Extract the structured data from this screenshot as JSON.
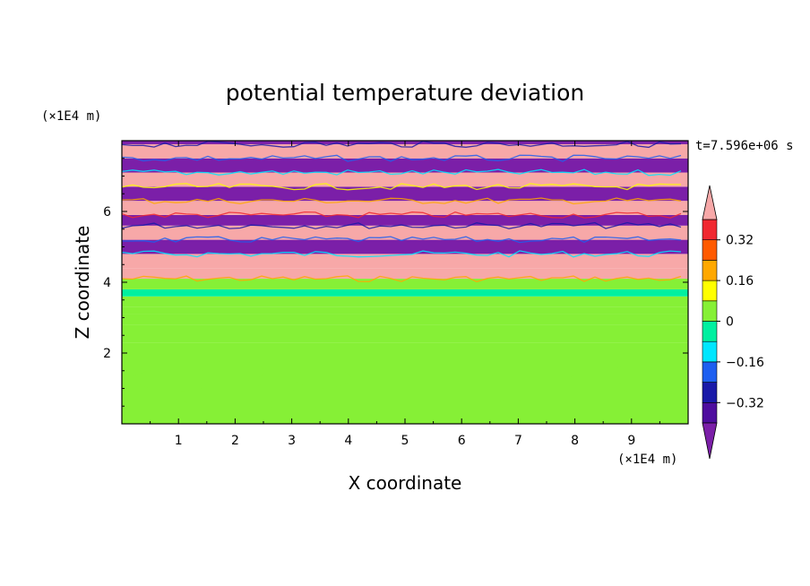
{
  "chart_data": {
    "type": "heatmap",
    "title": "potential temperature deviation",
    "xlabel": "X coordinate",
    "ylabel": "Z coordinate",
    "x_unit": "(×1E4 m)",
    "y_unit": "(×1E4 m)",
    "time_label": "t=7.596e+06 s",
    "xlim": [
      0,
      10
    ],
    "ylim": [
      0,
      8
    ],
    "x_ticks": [
      1,
      2,
      3,
      4,
      5,
      6,
      7,
      8,
      9
    ],
    "y_ticks": [
      2,
      4,
      6
    ],
    "colorbar": {
      "levels": [
        -0.4,
        -0.32,
        -0.24,
        -0.16,
        -0.08,
        0,
        0.08,
        0.16,
        0.24,
        0.32,
        0.4
      ],
      "colors": [
        "#7b1fa8",
        "#4e0d9e",
        "#1a1aa8",
        "#1e5ff0",
        "#00e6ff",
        "#00f0a0",
        "#86f036",
        "#ffff00",
        "#ffa800",
        "#ff5a00",
        "#f02830",
        "#f7a8a8"
      ],
      "labels": [
        "0.32",
        "0.16",
        "0",
        "−0.16",
        "−0.32"
      ],
      "label_values": [
        0.32,
        0.16,
        0,
        -0.16,
        -0.32
      ],
      "extend": "both"
    },
    "bands": [
      {
        "z0": 0.0,
        "z1": 2.0,
        "value": 0.06
      },
      {
        "z0": 2.0,
        "z1": 2.3,
        "value": 0.0
      },
      {
        "z0": 2.3,
        "z1": 2.8,
        "value": 0.05
      },
      {
        "z0": 2.8,
        "z1": 3.1,
        "value": 0.0
      },
      {
        "z0": 3.1,
        "z1": 3.3,
        "value": 0.04
      },
      {
        "z0": 3.3,
        "z1": 3.6,
        "value": 0.0
      },
      {
        "z0": 3.6,
        "z1": 3.8,
        "value": -0.07
      },
      {
        "z0": 3.8,
        "z1": 4.1,
        "value": 0.02
      },
      {
        "z0": 4.1,
        "z1": 4.4,
        "value": 0.45
      },
      {
        "z0": 4.4,
        "z1": 4.8,
        "value": 0.45
      },
      {
        "z0": 4.8,
        "z1": 5.2,
        "value": -0.45
      },
      {
        "z0": 5.2,
        "z1": 5.6,
        "value": 0.45
      },
      {
        "z0": 5.6,
        "z1": 5.9,
        "value": -0.45
      },
      {
        "z0": 5.9,
        "z1": 6.3,
        "value": 0.45
      },
      {
        "z0": 6.3,
        "z1": 6.7,
        "value": -0.45
      },
      {
        "z0": 6.7,
        "z1": 7.1,
        "value": 0.45
      },
      {
        "z0": 7.1,
        "z1": 7.5,
        "value": -0.45
      },
      {
        "z0": 7.5,
        "z1": 7.9,
        "value": 0.45
      },
      {
        "z0": 7.9,
        "z1": 8.0,
        "value": -0.45
      }
    ]
  }
}
